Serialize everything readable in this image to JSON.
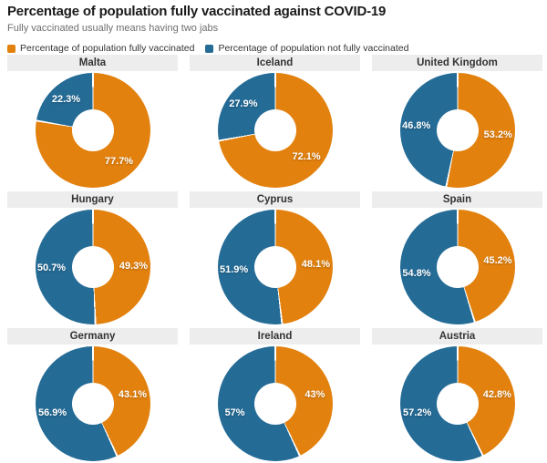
{
  "header": {
    "title": "Percentage of population fully vaccinated against COVID-19",
    "subtitle": "Fully vaccinated usually means having two jabs"
  },
  "legend": [
    {
      "name": "fully",
      "label": "Percentage of population fully vaccinated",
      "color": "#e2810e"
    },
    {
      "name": "not_fully",
      "label": "Percentage of population not fully vaccinated",
      "color": "#246b96"
    }
  ],
  "chart_data": {
    "type": "pie",
    "variant": "donut-small-multiples",
    "grid": "3x3",
    "start_angle": "12 o'clock",
    "direction": "clockwise",
    "colors": {
      "fully": "#e2810e",
      "not_fully": "#246b96"
    },
    "series_names": [
      "Percentage of population fully vaccinated",
      "Percentage of population not fully vaccinated"
    ],
    "charts": [
      {
        "title": "Malta",
        "slices": [
          {
            "name": "fully",
            "value": 77.7,
            "label": "77.7%"
          },
          {
            "name": "not_fully",
            "value": 22.3,
            "label": "22.3%"
          }
        ]
      },
      {
        "title": "Iceland",
        "slices": [
          {
            "name": "fully",
            "value": 72.1,
            "label": "72.1%"
          },
          {
            "name": "not_fully",
            "value": 27.9,
            "label": "27.9%"
          }
        ]
      },
      {
        "title": "United Kingdom",
        "slices": [
          {
            "name": "fully",
            "value": 53.2,
            "label": "53.2%"
          },
          {
            "name": "not_fully",
            "value": 46.8,
            "label": "46.8%"
          }
        ]
      },
      {
        "title": "Hungary",
        "slices": [
          {
            "name": "fully",
            "value": 49.3,
            "label": "49.3%"
          },
          {
            "name": "not_fully",
            "value": 50.7,
            "label": "50.7%"
          }
        ]
      },
      {
        "title": "Cyprus",
        "slices": [
          {
            "name": "fully",
            "value": 48.1,
            "label": "48.1%"
          },
          {
            "name": "not_fully",
            "value": 51.9,
            "label": "51.9%"
          }
        ]
      },
      {
        "title": "Spain",
        "slices": [
          {
            "name": "fully",
            "value": 45.2,
            "label": "45.2%"
          },
          {
            "name": "not_fully",
            "value": 54.8,
            "label": "54.8%"
          }
        ]
      },
      {
        "title": "Germany",
        "slices": [
          {
            "name": "fully",
            "value": 43.1,
            "label": "43.1%"
          },
          {
            "name": "not_fully",
            "value": 56.9,
            "label": "56.9%"
          }
        ]
      },
      {
        "title": "Ireland",
        "slices": [
          {
            "name": "fully",
            "value": 43,
            "label": "43%"
          },
          {
            "name": "not_fully",
            "value": 57,
            "label": "57%"
          }
        ]
      },
      {
        "title": "Austria",
        "slices": [
          {
            "name": "fully",
            "value": 42.8,
            "label": "42.8%"
          },
          {
            "name": "not_fully",
            "value": 57.2,
            "label": "57.2%"
          }
        ]
      }
    ]
  }
}
